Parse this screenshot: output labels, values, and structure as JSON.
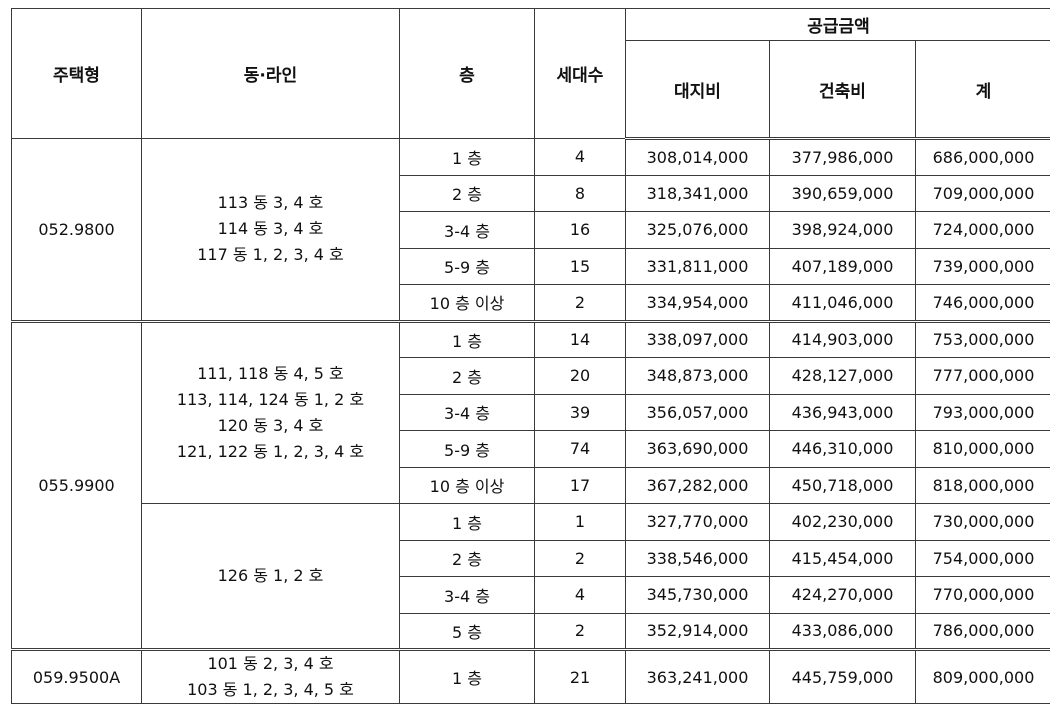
{
  "headers": {
    "type": "주택형",
    "dong_line": "동·라인",
    "floor": "층",
    "households": "세대수",
    "supply_price": "공급금액",
    "land": "대지비",
    "building": "건축비",
    "total": "계"
  },
  "groups": [
    {
      "type": "052.9800",
      "blocks": [
        {
          "dong_lines": [
            "113 동 3, 4 호",
            "114 동 3, 4 호",
            "117 동 1, 2, 3, 4 호"
          ],
          "rows": [
            {
              "floor": "1 층",
              "households": "4",
              "land": "308,014,000",
              "building": "377,986,000",
              "total": "686,000,000"
            },
            {
              "floor": "2 층",
              "households": "8",
              "land": "318,341,000",
              "building": "390,659,000",
              "total": "709,000,000"
            },
            {
              "floor": "3-4 층",
              "households": "16",
              "land": "325,076,000",
              "building": "398,924,000",
              "total": "724,000,000"
            },
            {
              "floor": "5-9 층",
              "households": "15",
              "land": "331,811,000",
              "building": "407,189,000",
              "total": "739,000,000"
            },
            {
              "floor": "10 층  이상",
              "households": "2",
              "land": "334,954,000",
              "building": "411,046,000",
              "total": "746,000,000"
            }
          ]
        }
      ]
    },
    {
      "type": "055.9900",
      "blocks": [
        {
          "dong_lines": [
            "111, 118 동 4, 5 호",
            "113, 114, 124 동 1, 2 호",
            "120 동 3, 4 호",
            "121, 122 동 1, 2, 3, 4 호"
          ],
          "rows": [
            {
              "floor": "1 층",
              "households": "14",
              "land": "338,097,000",
              "building": "414,903,000",
              "total": "753,000,000"
            },
            {
              "floor": "2 층",
              "households": "20",
              "land": "348,873,000",
              "building": "428,127,000",
              "total": "777,000,000"
            },
            {
              "floor": "3-4 층",
              "households": "39",
              "land": "356,057,000",
              "building": "436,943,000",
              "total": "793,000,000"
            },
            {
              "floor": "5-9 층",
              "households": "74",
              "land": "363,690,000",
              "building": "446,310,000",
              "total": "810,000,000"
            },
            {
              "floor": "10 층  이상",
              "households": "17",
              "land": "367,282,000",
              "building": "450,718,000",
              "total": "818,000,000"
            }
          ]
        },
        {
          "dong_lines": [
            "126 동 1, 2 호"
          ],
          "rows": [
            {
              "floor": "1 층",
              "households": "1",
              "land": "327,770,000",
              "building": "402,230,000",
              "total": "730,000,000"
            },
            {
              "floor": "2 층",
              "households": "2",
              "land": "338,546,000",
              "building": "415,454,000",
              "total": "754,000,000"
            },
            {
              "floor": "3-4 층",
              "households": "4",
              "land": "345,730,000",
              "building": "424,270,000",
              "total": "770,000,000"
            },
            {
              "floor": "5 층",
              "households": "2",
              "land": "352,914,000",
              "building": "433,086,000",
              "total": "786,000,000"
            }
          ]
        }
      ]
    },
    {
      "type": "059.9500A",
      "blocks": [
        {
          "dong_lines": [
            "101 동 2, 3, 4 호",
            "103 동 1, 2, 3, 4, 5 호"
          ],
          "rows": [
            {
              "floor": "1 층",
              "households": "21",
              "land": "363,241,000",
              "building": "445,759,000",
              "total": "809,000,000"
            }
          ]
        }
      ]
    }
  ]
}
